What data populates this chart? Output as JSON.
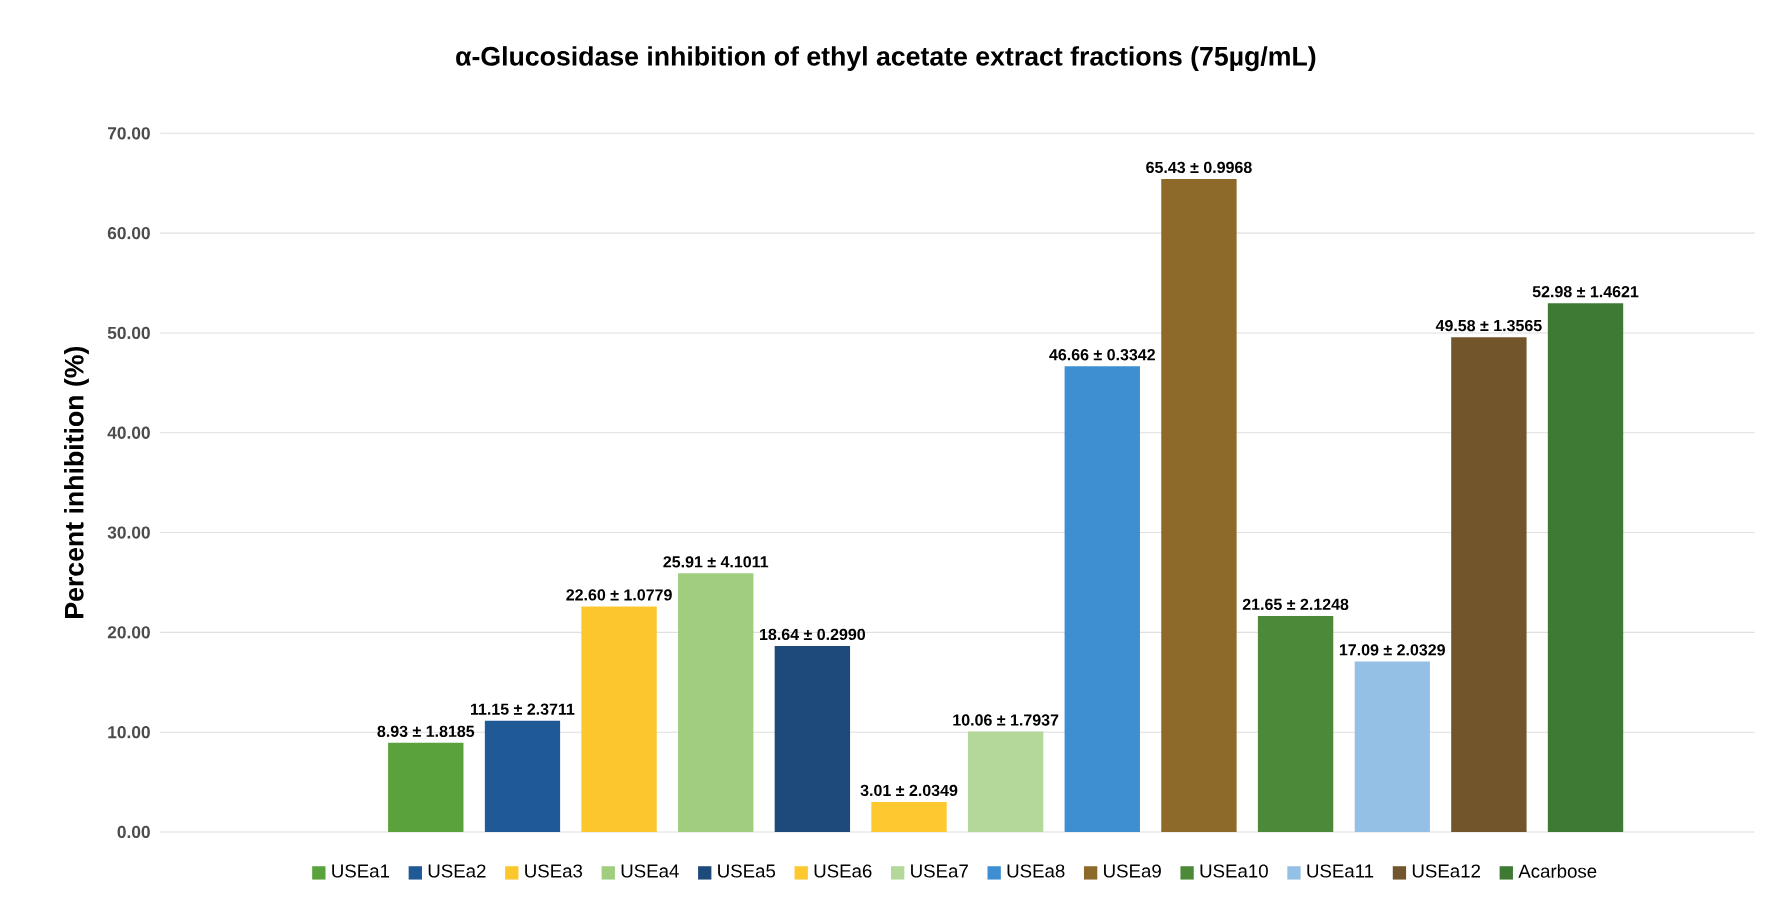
{
  "chart_data": {
    "type": "bar",
    "title": "α-Glucosidase inhibition of ethyl acetate extract fractions (75µg/mL)",
    "ylabel": "Percent inhibition (%)",
    "categories": [
      null
    ],
    "series": [
      {
        "name": "USEa1",
        "color": "#5aa33c",
        "values": [
          8.93
        ],
        "value_labels": [
          "8.93 ± 1.8185"
        ]
      },
      {
        "name": "USEa2",
        "color": "#1f5a96",
        "values": [
          11.15
        ],
        "value_labels": [
          "11.15 ± 2.3711"
        ]
      },
      {
        "name": "USEa3",
        "color": "#fcc72d",
        "values": [
          22.6
        ],
        "value_labels": [
          "22.60 ± 1.0779"
        ]
      },
      {
        "name": "USEa4",
        "color": "#a1cd7f",
        "values": [
          25.91
        ],
        "value_labels": [
          "25.91 ± 4.1011"
        ]
      },
      {
        "name": "USEa5",
        "color": "#1d4a7a",
        "values": [
          18.64
        ],
        "value_labels": [
          "18.64 ± 0.2990"
        ]
      },
      {
        "name": "USEa6",
        "color": "#fdc92e",
        "values": [
          3.01
        ],
        "value_labels": [
          "3.01 ± 2.0349"
        ]
      },
      {
        "name": "USEa7",
        "color": "#b4d89a",
        "values": [
          10.06
        ],
        "value_labels": [
          "10.06 ± 1.7937"
        ]
      },
      {
        "name": "USEa8",
        "color": "#3d8fd2",
        "values": [
          46.66
        ],
        "value_labels": [
          "46.66 ± 0.3342"
        ]
      },
      {
        "name": "USEa9",
        "color": "#8e6a2a",
        "values": [
          65.43
        ],
        "value_labels": [
          "65.43 ± 0.9968"
        ]
      },
      {
        "name": "USEa10",
        "color": "#4c8a3a",
        "values": [
          21.65
        ],
        "value_labels": [
          "21.65 ± 2.1248"
        ]
      },
      {
        "name": "USEa11",
        "color": "#95c0e6",
        "values": [
          17.09
        ],
        "value_labels": [
          "17.09 ± 2.0329"
        ]
      },
      {
        "name": "USEa12",
        "color": "#72552a",
        "values": [
          49.58
        ],
        "value_labels": [
          "49.58 ± 1.3565"
        ]
      },
      {
        "name": "Acarbose",
        "color": "#3f7a35",
        "values": [
          52.98
        ],
        "value_labels": [
          "52.98 ± 1.4621"
        ]
      }
    ],
    "ylim": [
      0,
      70
    ],
    "yticks": [
      {
        "value": 0,
        "label": "0.00"
      },
      {
        "value": 10,
        "label": "10.00"
      },
      {
        "value": 20,
        "label": "20.00"
      },
      {
        "value": 30,
        "label": "30.00"
      },
      {
        "value": 40,
        "label": "40.00"
      },
      {
        "value": 50,
        "label": "50.00"
      },
      {
        "value": 60,
        "label": "60.00"
      },
      {
        "value": 70,
        "label": "70.00"
      }
    ],
    "grid": "y",
    "legend": "bottom",
    "tick_labels": "y"
  }
}
